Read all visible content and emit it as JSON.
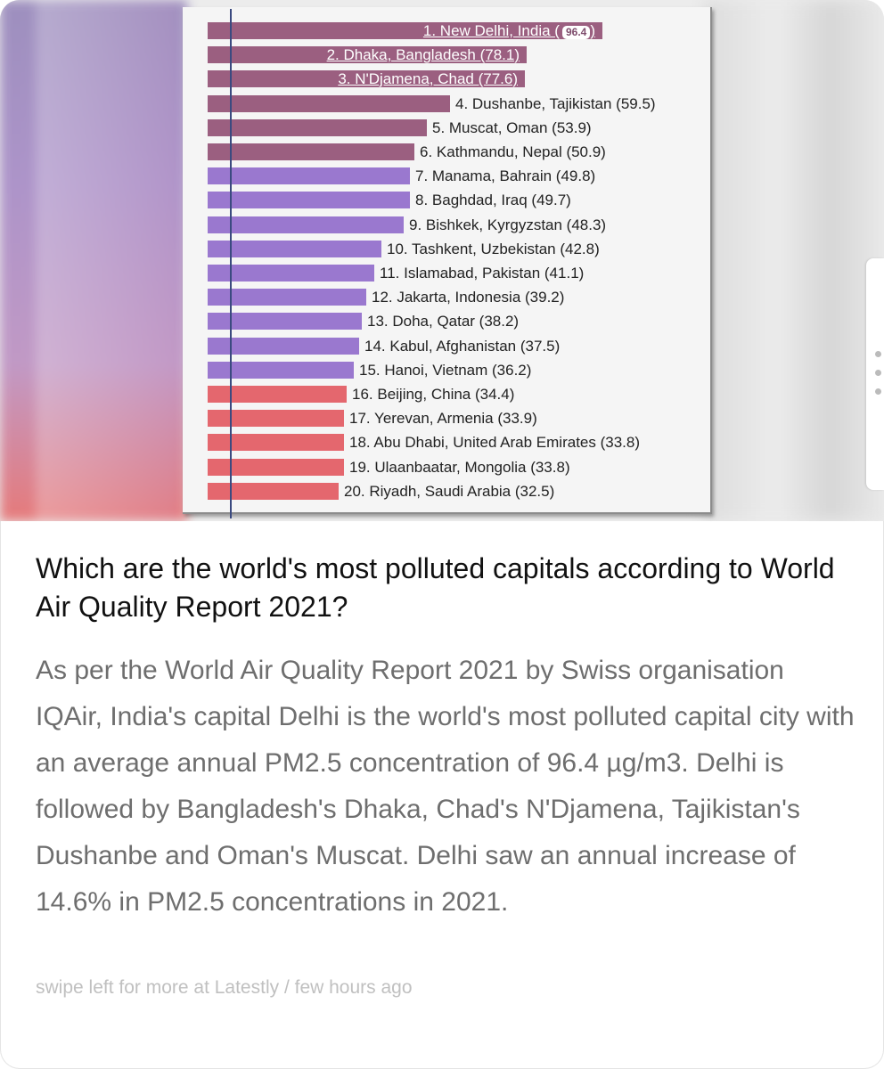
{
  "chart_data": {
    "type": "bar",
    "orientation": "horizontal",
    "categories": [
      "1. New Delhi, India",
      "2. Dhaka, Bangladesh",
      "3. N'Djamena, Chad",
      "4. Dushanbe, Tajikistan",
      "5. Muscat, Oman",
      "6. Kathmandu, Nepal",
      "7. Manama, Bahrain",
      "8. Baghdad, Iraq",
      "9. Bishkek, Kyrgyzstan",
      "10. Tashkent, Uzbekistan",
      "11. Islamabad, Pakistan",
      "12. Jakarta, Indonesia",
      "13. Doha, Qatar",
      "14. Kabul, Afghanistan",
      "15. Hanoi, Vietnam",
      "16. Beijing, China",
      "17. Yerevan, Armenia",
      "18. Abu Dhabi, United Arab Emirates",
      "19. Ulaanbaatar, Mongolia",
      "20. Riyadh, Saudi Arabia"
    ],
    "values": [
      96.4,
      78.1,
      77.6,
      59.5,
      53.9,
      50.9,
      49.8,
      49.7,
      48.3,
      42.8,
      41.1,
      39.2,
      38.2,
      37.5,
      36.2,
      34.4,
      33.9,
      33.8,
      33.8,
      32.5
    ],
    "labels": [
      "1. New Delhi, India (",
      "2. Dhaka, Bangladesh (78.1)",
      "3. N'Djamena, Chad (77.6)",
      "4. Dushanbe, Tajikistan (59.5)",
      "5. Muscat, Oman (53.9)",
      "6. Kathmandu, Nepal (50.9)",
      "7. Manama, Bahrain (49.8)",
      "8. Baghdad, Iraq (49.7)",
      "9. Bishkek, Kyrgyzstan (48.3)",
      "10. Tashkent, Uzbekistan (42.8)",
      "11. Islamabad, Pakistan (41.1)",
      "12. Jakarta, Indonesia (39.2)",
      "13. Doha, Qatar (38.2)",
      "14. Kabul, Afghanistan (37.5)",
      "15. Hanoi, Vietnam (36.2)",
      "16. Beijing, China (34.4)",
      "17. Yerevan, Armenia (33.9)",
      "18. Abu Dhabi, United Arab Emirates (33.8)",
      "19. Ulaanbaatar, Mongolia (33.8)",
      "20. Riyadh, Saudi Arabia (32.5)"
    ],
    "first_value_badge": "96.4",
    "first_label_tail": ")",
    "bar_colors": [
      "#9b5f80",
      "#9b5f80",
      "#9b5f80",
      "#9b5f80",
      "#9b5f80",
      "#9b5f80",
      "#9a78cf",
      "#9a78cf",
      "#9a78cf",
      "#9a78cf",
      "#9a78cf",
      "#9a78cf",
      "#9a78cf",
      "#9a78cf",
      "#9a78cf",
      "#e4676e",
      "#e4676e",
      "#e4676e",
      "#e4676e",
      "#e4676e"
    ],
    "labels_inside_bar_count": 3
  },
  "article": {
    "headline": "Which are the world's most polluted capitals according to World Air Quality Report 2021?",
    "body": "As per the World Air Quality Report 2021 by Swiss organisation IQAir, India's capital Delhi is the world's most polluted capital city with an average annual PM2.5 concentration of 96.4 µg/m3. Delhi is followed by Bangladesh's Dhaka, Chad's N'Djamena, Tajikistan's Dushanbe and Oman's Muscat. Delhi saw an annual increase of 14.6% in PM2.5 concentrations in 2021.",
    "footer": "swipe left for more at Latestly / few hours ago"
  }
}
